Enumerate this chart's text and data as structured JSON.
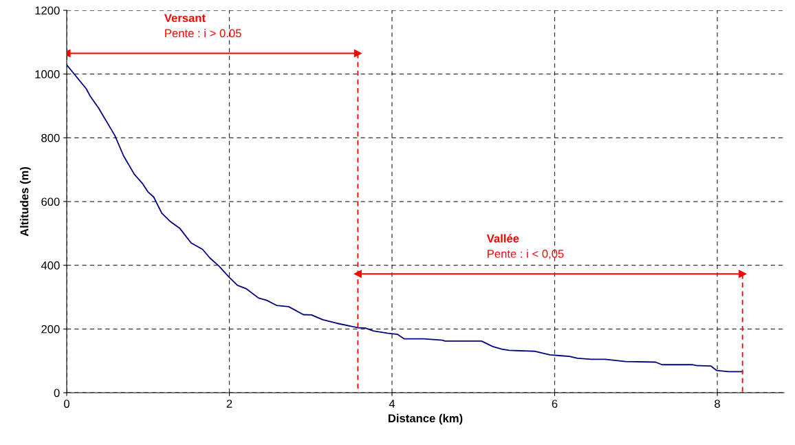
{
  "chart_data": {
    "type": "line",
    "xlabel": "Distance (km)",
    "ylabel": "Altitudes (m)",
    "xlim": [
      0,
      8.82
    ],
    "xticks": [
      0,
      2,
      4,
      6,
      8
    ],
    "ylim": [
      0,
      1200
    ],
    "yticks": [
      0,
      200,
      400,
      600,
      800,
      1000,
      1200
    ],
    "grid": true,
    "line_style": "solid",
    "marker": "none",
    "series": [
      {
        "color": "#000080",
        "x": [
          0,
          0.24,
          0.29,
          0.39,
          0.59,
          0.7,
          0.83,
          0.93,
          1.0,
          1.07,
          1.17,
          1.27,
          1.39,
          1.53,
          1.67,
          1.76,
          1.87,
          2.0,
          2.1,
          2.21,
          2.36,
          2.46,
          2.58,
          2.73,
          2.91,
          3.01,
          3.15,
          3.32,
          3.58,
          3.67,
          3.77,
          3.94,
          4.07,
          4.15,
          4.39,
          4.62,
          4.65,
          5.1,
          5.24,
          5.35,
          5.44,
          5.76,
          5.94,
          6.08,
          6.18,
          6.28,
          6.45,
          6.62,
          6.87,
          7.24,
          7.32,
          7.69,
          7.75,
          7.92,
          7.99,
          8.14,
          8.31
        ],
        "values": [
          1029,
          954,
          930,
          894,
          808,
          743,
          686,
          657,
          630,
          614,
          563,
          538,
          516,
          470,
          450,
          423,
          398,
          362,
          337,
          326,
          297,
          290,
          274,
          270,
          245,
          244,
          229,
          218,
          204,
          203,
          194,
          187,
          183,
          169,
          169,
          165,
          162,
          162,
          145,
          137,
          133,
          130,
          119,
          116,
          114,
          108,
          105,
          105,
          98,
          96,
          88,
          88,
          85,
          84,
          70,
          66,
          66
        ]
      },
      {
        "color": "#ff0000",
        "marker": "triangle",
        "x": [
          0,
          3.58
        ],
        "values": [
          1065,
          1065
        ]
      },
      {
        "color": "#ff0000",
        "line_style": "dashed",
        "x": [
          3.58,
          3.58
        ],
        "values": [
          1065,
          0
        ]
      },
      {
        "color": "#ff0000",
        "marker": "triangle",
        "x": [
          3.58,
          8.31
        ],
        "values": [
          373,
          373
        ]
      },
      {
        "color": "#ff0000",
        "line_style": "dashed",
        "x": [
          8.31,
          8.31
        ],
        "values": [
          373,
          0
        ]
      }
    ],
    "annotations": [
      "Versant",
      "Pente : i > 0.05",
      "Vallée",
      "Pente : i < 0,05"
    ]
  }
}
